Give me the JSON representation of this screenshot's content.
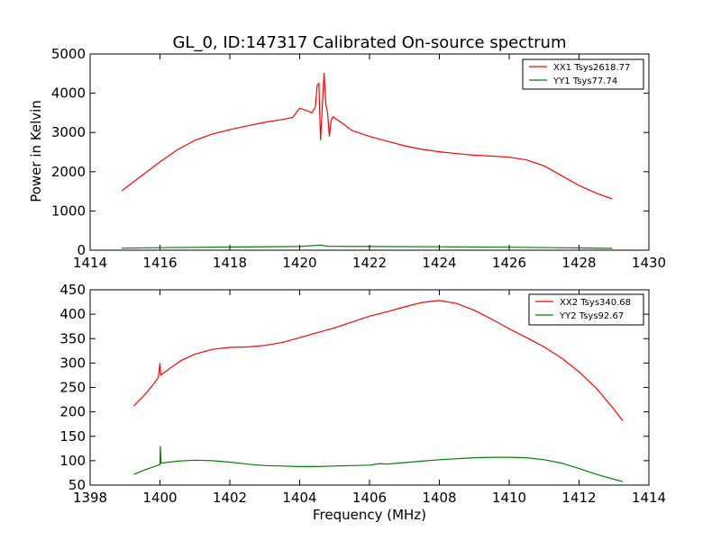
{
  "figure": {
    "title": "GL_0, ID:147317 Calibrated On-source spectrum",
    "xlabel": "Frequency (MHz)",
    "ylabel": "Power in Kelvin"
  },
  "chart_data": [
    {
      "type": "line",
      "panel": "top",
      "title": "GL_0, ID:147317 Calibrated On-source spectrum",
      "xlabel": "",
      "ylabel": "Power in Kelvin",
      "xlim": [
        1414,
        1430
      ],
      "ylim": [
        0,
        5000
      ],
      "xticks": [
        1414,
        1416,
        1418,
        1420,
        1422,
        1424,
        1426,
        1428,
        1430
      ],
      "yticks": [
        0,
        1000,
        2000,
        3000,
        4000,
        5000
      ],
      "legend_position": "top-right",
      "series": [
        {
          "name": "XX1 Tsys2618.77",
          "color": "#ff0000",
          "points": [
            [
              1414.9,
              1510
            ],
            [
              1415.3,
              1780
            ],
            [
              1415.7,
              2050
            ],
            [
              1416.0,
              2250
            ],
            [
              1416.5,
              2560
            ],
            [
              1417.0,
              2800
            ],
            [
              1417.5,
              2960
            ],
            [
              1418.0,
              3070
            ],
            [
              1418.5,
              3170
            ],
            [
              1419.0,
              3260
            ],
            [
              1419.5,
              3330
            ],
            [
              1419.8,
              3380
            ],
            [
              1420.0,
              3620
            ],
            [
              1420.2,
              3560
            ],
            [
              1420.35,
              3500
            ],
            [
              1420.45,
              3650
            ],
            [
              1420.5,
              4200
            ],
            [
              1420.55,
              4250
            ],
            [
              1420.6,
              2800
            ],
            [
              1420.65,
              3700
            ],
            [
              1420.7,
              4520
            ],
            [
              1420.75,
              3700
            ],
            [
              1420.8,
              3500
            ],
            [
              1420.85,
              2900
            ],
            [
              1420.9,
              3300
            ],
            [
              1420.95,
              3400
            ],
            [
              1421.2,
              3250
            ],
            [
              1421.5,
              3050
            ],
            [
              1422.0,
              2900
            ],
            [
              1422.5,
              2780
            ],
            [
              1423.0,
              2660
            ],
            [
              1423.5,
              2570
            ],
            [
              1424.0,
              2510
            ],
            [
              1424.5,
              2460
            ],
            [
              1425.0,
              2420
            ],
            [
              1425.5,
              2400
            ],
            [
              1426.0,
              2370
            ],
            [
              1426.5,
              2300
            ],
            [
              1427.0,
              2150
            ],
            [
              1427.5,
              1900
            ],
            [
              1428.0,
              1650
            ],
            [
              1428.5,
              1450
            ],
            [
              1428.95,
              1310
            ]
          ]
        },
        {
          "name": "YY1 Tsys77.74",
          "color": "#008000",
          "points": [
            [
              1414.9,
              50
            ],
            [
              1416.0,
              65
            ],
            [
              1418.0,
              80
            ],
            [
              1420.0,
              95
            ],
            [
              1420.6,
              130
            ],
            [
              1420.8,
              100
            ],
            [
              1422.0,
              95
            ],
            [
              1424.0,
              88
            ],
            [
              1426.0,
              75
            ],
            [
              1428.0,
              58
            ],
            [
              1428.95,
              45
            ]
          ]
        }
      ]
    },
    {
      "type": "line",
      "panel": "bottom",
      "title": "",
      "xlabel": "Frequency (MHz)",
      "ylabel": "",
      "xlim": [
        1398,
        1414
      ],
      "ylim": [
        50,
        450
      ],
      "xticks": [
        1398,
        1400,
        1402,
        1404,
        1406,
        1408,
        1410,
        1412,
        1414
      ],
      "yticks": [
        50,
        100,
        150,
        200,
        250,
        300,
        350,
        400,
        450
      ],
      "legend_position": "top-right",
      "series": [
        {
          "name": "XX2 Tsys340.68",
          "color": "#ff0000",
          "points": [
            [
              1399.25,
              212
            ],
            [
              1399.5,
              230
            ],
            [
              1399.8,
              255
            ],
            [
              1399.95,
              270
            ],
            [
              1400.0,
              300
            ],
            [
              1400.02,
              275
            ],
            [
              1400.3,
              290
            ],
            [
              1400.6,
              305
            ],
            [
              1401.0,
              318
            ],
            [
              1401.5,
              328
            ],
            [
              1402.0,
              332
            ],
            [
              1402.5,
              333
            ],
            [
              1403.0,
              336
            ],
            [
              1403.5,
              342
            ],
            [
              1404.0,
              352
            ],
            [
              1404.5,
              362
            ],
            [
              1405.0,
              372
            ],
            [
              1405.5,
              384
            ],
            [
              1406.0,
              396
            ],
            [
              1406.5,
              405
            ],
            [
              1407.0,
              415
            ],
            [
              1407.5,
              424
            ],
            [
              1408.0,
              428
            ],
            [
              1408.5,
              422
            ],
            [
              1409.0,
              408
            ],
            [
              1409.5,
              390
            ],
            [
              1410.0,
              370
            ],
            [
              1410.5,
              352
            ],
            [
              1411.0,
              333
            ],
            [
              1411.5,
              310
            ],
            [
              1412.0,
              282
            ],
            [
              1412.5,
              248
            ],
            [
              1413.0,
              205
            ],
            [
              1413.25,
              182
            ]
          ]
        },
        {
          "name": "YY2 Tsys92.67",
          "color": "#008000",
          "points": [
            [
              1399.25,
              72
            ],
            [
              1399.6,
              82
            ],
            [
              1400.0,
              92
            ],
            [
              1400.01,
              130
            ],
            [
              1400.03,
              95
            ],
            [
              1400.5,
              99
            ],
            [
              1401.0,
              101
            ],
            [
              1401.5,
              100
            ],
            [
              1402.0,
              97
            ],
            [
              1402.5,
              93
            ],
            [
              1403.0,
              90
            ],
            [
              1403.5,
              89
            ],
            [
              1404.0,
              88
            ],
            [
              1404.5,
              88
            ],
            [
              1405.0,
              89
            ],
            [
              1405.5,
              90
            ],
            [
              1406.0,
              91
            ],
            [
              1406.3,
              94
            ],
            [
              1406.5,
              93
            ],
            [
              1407.0,
              96
            ],
            [
              1407.5,
              99
            ],
            [
              1408.0,
              102
            ],
            [
              1408.5,
              104
            ],
            [
              1409.0,
              106
            ],
            [
              1409.5,
              107
            ],
            [
              1410.0,
              107
            ],
            [
              1410.5,
              106
            ],
            [
              1411.0,
              102
            ],
            [
              1411.5,
              95
            ],
            [
              1412.0,
              84
            ],
            [
              1412.5,
              72
            ],
            [
              1413.0,
              62
            ],
            [
              1413.25,
              57
            ]
          ]
        }
      ]
    }
  ]
}
